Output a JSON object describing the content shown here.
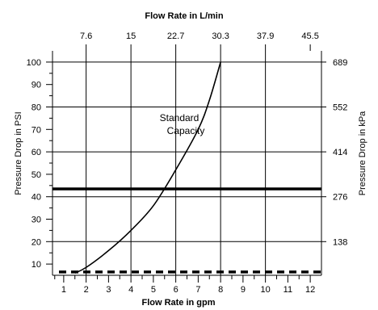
{
  "chart_data": {
    "type": "line",
    "title_top": "Flow Rate in L/min",
    "xlabel": "Flow Rate in gpm",
    "ylabel_left": "Pressure Drop in PSI",
    "ylabel_right": "Pressure Drop in kPa",
    "x_range": [
      0.5,
      12.5
    ],
    "y_range": [
      5,
      105
    ],
    "x_ticks": [
      "1",
      "2",
      "3",
      "4",
      "5",
      "6",
      "7",
      "8",
      "9",
      "10",
      "11",
      "12"
    ],
    "x_gridlines": [
      2,
      4,
      6,
      8,
      10
    ],
    "top_ticks": [
      "7.6",
      "15",
      "22.7",
      "30.3",
      "37.9",
      "45.5"
    ],
    "top_tick_positions_gpm": [
      2,
      4,
      6,
      8,
      10,
      12
    ],
    "y_ticks": [
      "10",
      "20",
      "30",
      "40",
      "50",
      "60",
      "70",
      "80",
      "90",
      "100"
    ],
    "y_gridlines": [
      20,
      40,
      60,
      80,
      100
    ],
    "right_ticks": [
      "138",
      "276",
      "414",
      "552",
      "689"
    ],
    "right_tick_positions_psi": [
      20,
      40,
      60,
      80,
      100
    ],
    "series": [
      {
        "name": "Standard Capacity",
        "x": [
          1.5,
          2,
          3,
          4,
          5,
          6,
          7,
          7.5,
          8
        ],
        "y": [
          6,
          8.5,
          16,
          25,
          36,
          52,
          70,
          83,
          100
        ]
      }
    ],
    "reference_lines": [
      {
        "style": "solid",
        "y": 43.5
      },
      {
        "style": "dashed",
        "y": 6.5
      }
    ],
    "annotation": {
      "lines": [
        "Standard",
        "Capacity"
      ]
    }
  }
}
